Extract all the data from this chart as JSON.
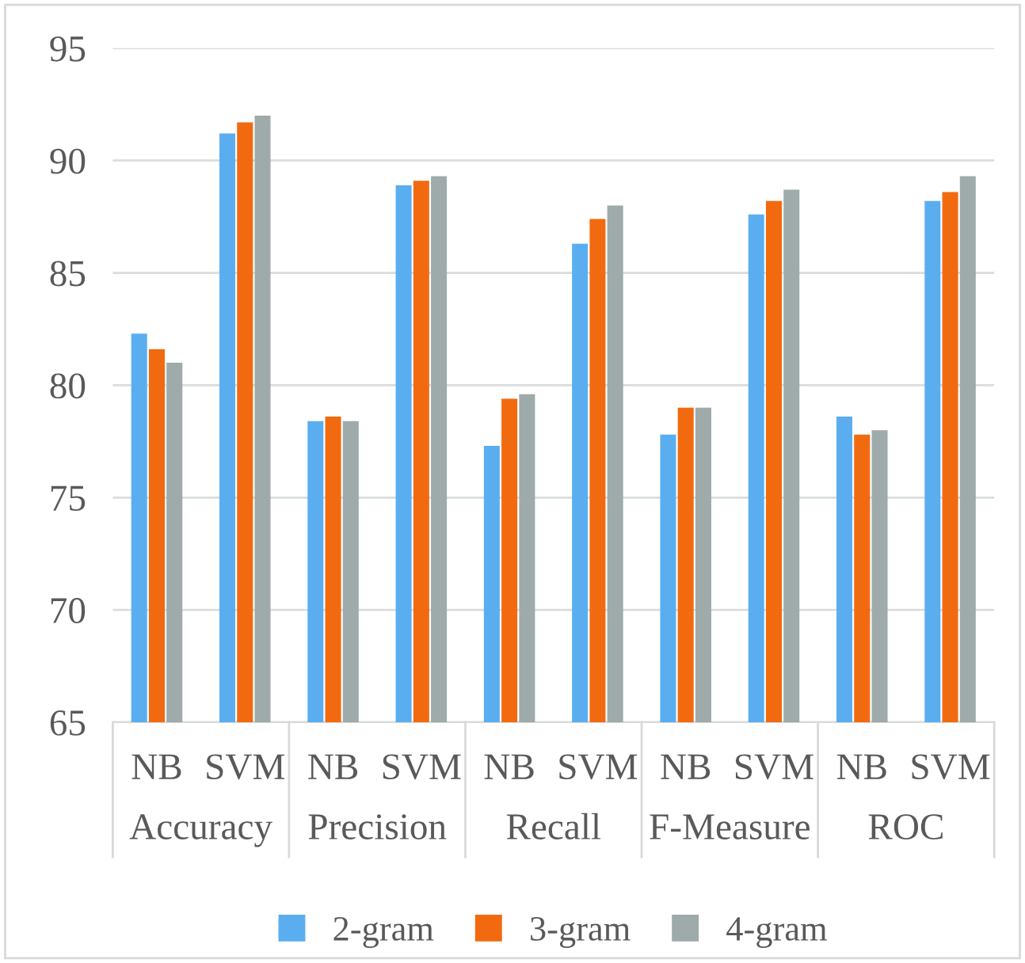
{
  "chart_data": {
    "type": "bar",
    "categories": [
      "NB",
      "SVM",
      "NB",
      "SVM",
      "NB",
      "SVM",
      "NB",
      "SVM",
      "NB",
      "SVM"
    ],
    "annotations": [
      "Accuracy",
      "Precision",
      "Recall",
      "F-Measure",
      "ROC"
    ],
    "series": [
      {
        "name": "2-gram",
        "color": "#5aaef0",
        "values": [
          82.3,
          91.2,
          78.4,
          88.9,
          77.3,
          86.3,
          77.8,
          87.6,
          78.6,
          88.2
        ]
      },
      {
        "name": "3-gram",
        "color": "#f26a0f",
        "values": [
          81.6,
          91.7,
          78.6,
          89.1,
          79.4,
          87.4,
          79.0,
          88.2,
          77.8,
          88.6
        ]
      },
      {
        "name": "4-gram",
        "color": "#9faaaa",
        "values": [
          81.0,
          92.0,
          78.4,
          89.3,
          79.6,
          88.0,
          79.0,
          88.7,
          78.0,
          89.3
        ]
      }
    ],
    "ylim": [
      65,
      95
    ],
    "yticks": [
      65,
      70,
      75,
      80,
      85,
      90,
      95
    ],
    "grid": "y",
    "legend": "bottom"
  }
}
